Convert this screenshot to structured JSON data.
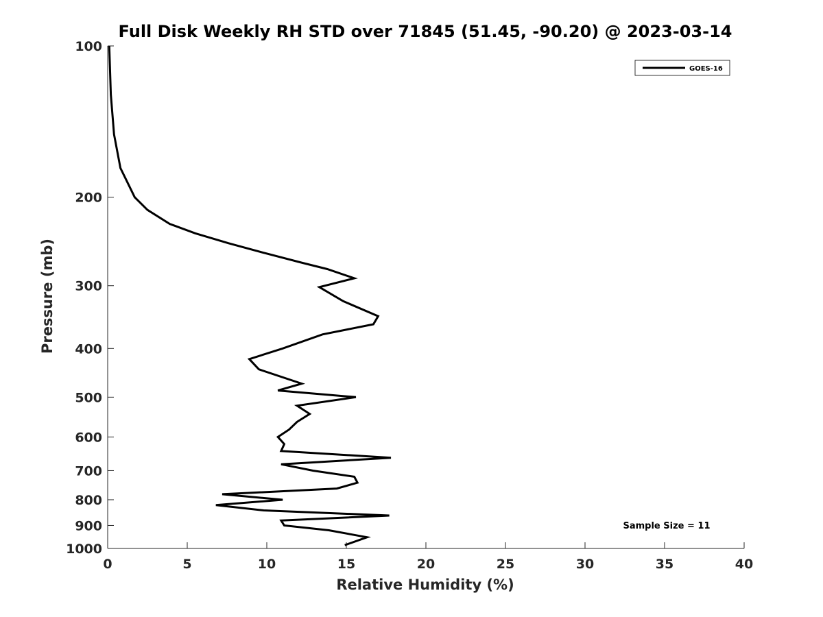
{
  "chart_data": {
    "type": "line",
    "title": "Full Disk Weekly RH STD over 71845 (51.45, -90.20) @ 2023-03-14",
    "xlabel": "Relative Humidity (%)",
    "ylabel": "Pressure (mb)",
    "xlim": [
      0,
      40
    ],
    "ylim": [
      100,
      1000
    ],
    "y_scale": "log",
    "y_reversed": true,
    "x_ticks": [
      "0",
      "5",
      "10",
      "15",
      "20",
      "25",
      "30",
      "35",
      "40"
    ],
    "y_ticks": [
      "100",
      "200",
      "300",
      "400",
      "500",
      "600",
      "700",
      "800",
      "900",
      "1000"
    ],
    "grid": false,
    "legend_position": "top-right",
    "series": [
      {
        "name": "GOES-16",
        "color": "#000000",
        "points": [
          [
            0.1,
            100
          ],
          [
            0.2,
            125
          ],
          [
            0.4,
            150
          ],
          [
            0.8,
            175
          ],
          [
            1.7,
            200
          ],
          [
            2.5,
            212
          ],
          [
            3.9,
            226
          ],
          [
            5.5,
            236
          ],
          [
            7.6,
            247
          ],
          [
            9.8,
            258
          ],
          [
            12.0,
            269
          ],
          [
            13.8,
            278
          ],
          [
            15.5,
            290
          ],
          [
            13.3,
            302
          ],
          [
            14.8,
            322
          ],
          [
            17.0,
            345
          ],
          [
            16.7,
            358
          ],
          [
            13.5,
            375
          ],
          [
            11.0,
            400
          ],
          [
            8.9,
            420
          ],
          [
            9.5,
            440
          ],
          [
            12.2,
            470
          ],
          [
            10.7,
            485
          ],
          [
            15.6,
            500
          ],
          [
            11.9,
            520
          ],
          [
            12.7,
            540
          ],
          [
            11.9,
            560
          ],
          [
            11.4,
            580
          ],
          [
            10.7,
            600
          ],
          [
            11.1,
            620
          ],
          [
            10.9,
            640
          ],
          [
            17.8,
            660
          ],
          [
            10.9,
            680
          ],
          [
            12.9,
            700
          ],
          [
            15.5,
            720
          ],
          [
            15.7,
            740
          ],
          [
            14.4,
            760
          ],
          [
            7.2,
            780
          ],
          [
            11.0,
            800
          ],
          [
            6.8,
            820
          ],
          [
            9.8,
            840
          ],
          [
            17.7,
            860
          ],
          [
            10.9,
            880
          ],
          [
            11.1,
            900
          ],
          [
            13.9,
            920
          ],
          [
            16.3,
            950
          ],
          [
            14.9,
            985
          ]
        ]
      }
    ],
    "annotations": [
      "Sample Size = 11"
    ]
  }
}
